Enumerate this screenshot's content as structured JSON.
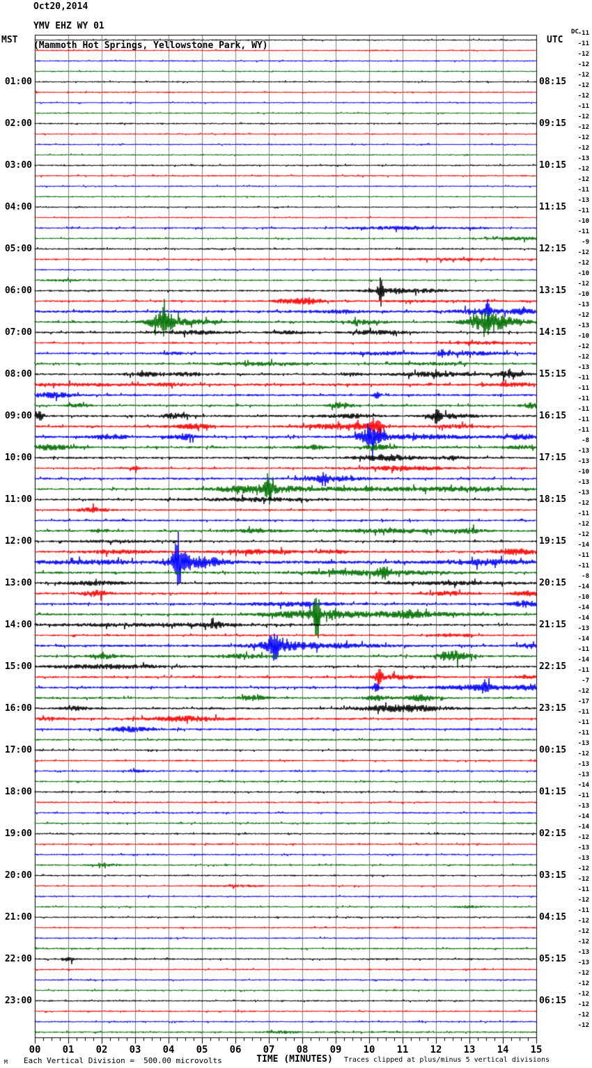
{
  "title": {
    "line1": "Oct20,2014",
    "line2": "YMV EHZ WY 01",
    "line3": "(Mammoth Hot Springs, Yellowstone Park, WY)"
  },
  "left_axis": {
    "header": "MST",
    "hours": [
      "01:00",
      "02:00",
      "03:00",
      "04:00",
      "05:00",
      "06:00",
      "07:00",
      "08:00",
      "09:00",
      "10:00",
      "11:00",
      "12:00",
      "13:00",
      "14:00",
      "15:00",
      "16:00",
      "17:00",
      "18:00",
      "19:00",
      "20:00",
      "21:00",
      "22:00",
      "23:00"
    ]
  },
  "right_axis": {
    "header": "UTC",
    "hours": [
      "08:15",
      "09:15",
      "10:15",
      "11:15",
      "12:15",
      "13:15",
      "14:15",
      "15:15",
      "16:15",
      "17:15",
      "18:15",
      "19:15",
      "20:15",
      "21:15",
      "22:15",
      "23:15",
      "00:15",
      "01:15",
      "02:15",
      "03:15",
      "04:15",
      "05:15",
      "06:15"
    ]
  },
  "dc_axis": {
    "header": "DC",
    "values": [
      -11,
      -11,
      -12,
      -12,
      -12,
      -12,
      -12,
      -11,
      -12,
      -12,
      -12,
      -12,
      -13,
      -12,
      -12,
      -11,
      -13,
      -11,
      -10,
      -11,
      -9,
      -12,
      -12,
      -10,
      -12,
      -10,
      -13,
      -12,
      -13,
      -10,
      -12,
      -12,
      -13,
      -11,
      -11,
      -11,
      -11,
      -11,
      -11,
      -8,
      -13,
      -13,
      -10,
      -13,
      -13,
      -12,
      -11,
      -12,
      -12,
      -14,
      -11,
      -11,
      -8,
      -14,
      -10,
      -14,
      -14,
      -13,
      -14,
      -11,
      -14,
      -11,
      -7,
      -12,
      -17,
      -11,
      -11,
      -11,
      -13,
      -12,
      -13,
      -13,
      -14,
      -11,
      -13,
      -14,
      -14,
      -12,
      -13,
      -13,
      -12,
      -12,
      -11,
      -12,
      -11,
      -12,
      -12,
      -12,
      -13,
      -13,
      -12,
      -12,
      -12,
      -12,
      -12,
      -12
    ]
  },
  "x_axis": {
    "labels": [
      "00",
      "01",
      "02",
      "03",
      "04",
      "05",
      "06",
      "07",
      "08",
      "09",
      "10",
      "11",
      "12",
      "13",
      "14",
      "15"
    ],
    "title": "TIME (MINUTES)"
  },
  "footer": {
    "left_note": "Each Vertical Division =  500.00 microvolts",
    "right_note": "Traces clipped at plus/minus 5 vertical divisions",
    "corner_mark": "M"
  },
  "colors": {
    "trace_cycle": [
      "#000000",
      "#ff0000",
      "#0000ff",
      "#006f00"
    ],
    "grid": "#808080",
    "border": "#000000"
  },
  "chart_data": {
    "type": "line",
    "subtype": "seismogram-helicorder",
    "station": "YMV EHZ WY 01",
    "location": "Mammoth Hot Springs, Yellowstone Park, WY",
    "date": "Oct20,2014",
    "timezone_left": "MST",
    "timezone_right": "UTC",
    "rows_total": 96,
    "minutes_per_row": 15,
    "x_range_minutes": [
      0,
      15
    ],
    "microvolts_per_division": 500,
    "clip_divisions": 5,
    "traces": [
      {
        "base": 0.9,
        "bursts": []
      },
      {
        "base": 0.9,
        "bursts": []
      },
      {
        "base": 0.9,
        "bursts": []
      },
      {
        "base": 0.9,
        "bursts": []
      },
      {
        "base": 0.9,
        "bursts": []
      },
      {
        "base": 0.9,
        "bursts": []
      },
      {
        "base": 0.9,
        "bursts": []
      },
      {
        "base": 0.9,
        "bursts": []
      },
      {
        "base": 1.0,
        "bursts": []
      },
      {
        "base": 0.9,
        "bursts": []
      },
      {
        "base": 0.9,
        "bursts": []
      },
      {
        "base": 0.9,
        "bursts": []
      },
      {
        "base": 1.0,
        "bursts": []
      },
      {
        "base": 1.0,
        "bursts": []
      },
      {
        "base": 0.9,
        "bursts": []
      },
      {
        "base": 0.9,
        "bursts": []
      },
      {
        "base": 0.9,
        "bursts": []
      },
      {
        "base": 0.9,
        "bursts": []
      },
      {
        "base": 1.1,
        "bursts": [
          [
            10.8,
            1.0,
            1.8
          ],
          [
            13.2,
            0.3,
            1.2
          ]
        ]
      },
      {
        "base": 1.0,
        "bursts": [
          [
            14.5,
            0.5,
            1.8
          ]
        ]
      },
      {
        "base": 1.1,
        "bursts": []
      },
      {
        "base": 1.1,
        "bursts": [
          [
            12.2,
            1.2,
            1.2
          ]
        ]
      },
      {
        "base": 0.9,
        "bursts": []
      },
      {
        "base": 1.1,
        "bursts": [
          [
            1.0,
            0.5,
            0.8
          ]
        ]
      },
      {
        "base": 1.2,
        "bursts": [
          [
            10.35,
            0.05,
            22
          ],
          [
            10.7,
            0.6,
            2.5
          ],
          [
            11.8,
            0.6,
            1.5
          ]
        ]
      },
      {
        "base": 1.3,
        "bursts": [
          [
            7.45,
            0.22,
            2.5
          ],
          [
            8.15,
            0.28,
            4.5
          ],
          [
            12,
            1,
            1
          ]
        ]
      },
      {
        "base": 1.8,
        "bursts": [
          [
            9,
            0.5,
            1.5
          ],
          [
            13.4,
            0.6,
            3
          ],
          [
            13.55,
            0.05,
            11
          ],
          [
            14.6,
            0.3,
            2.5
          ]
        ]
      },
      {
        "base": 1.5,
        "bursts": [
          [
            3.85,
            0.3,
            12
          ],
          [
            3.88,
            0.05,
            22
          ],
          [
            4.7,
            0.5,
            3
          ],
          [
            9.9,
            0.4,
            2.5
          ],
          [
            13.5,
            0.4,
            12
          ],
          [
            14.2,
            0.5,
            3.5
          ]
        ]
      },
      {
        "base": 1.3,
        "bursts": [
          [
            4.7,
            0.7,
            2.2
          ],
          [
            7.6,
            0.4,
            1.8
          ],
          [
            10.2,
            0.6,
            2.5
          ]
        ]
      },
      {
        "base": 1.2,
        "bursts": [
          [
            13.5,
            0.8,
            1.5
          ]
        ]
      },
      {
        "base": 1.4,
        "bursts": [
          [
            4.2,
            0.3,
            1.2
          ],
          [
            10.3,
            0.7,
            1.8
          ],
          [
            12.2,
            0.1,
            4
          ],
          [
            13,
            0.8,
            2
          ]
        ]
      },
      {
        "base": 1.3,
        "bursts": [
          [
            6.8,
            0.9,
            2.2
          ],
          [
            11.8,
            0.8,
            1.5
          ]
        ]
      },
      {
        "base": 1.4,
        "bursts": [
          [
            3.3,
            0.4,
            2.6
          ],
          [
            4.6,
            0.4,
            2
          ],
          [
            9.5,
            0.2,
            2.5
          ],
          [
            11.9,
            0.8,
            3
          ],
          [
            14.2,
            0.3,
            4
          ]
        ]
      },
      {
        "base": 1.7,
        "bursts": [
          [
            1.3,
            1.2,
            1.3
          ],
          [
            4,
            0.4,
            1.5
          ],
          [
            14.4,
            0.5,
            2
          ]
        ]
      },
      {
        "base": 1.5,
        "bursts": [
          [
            0.5,
            0.4,
            3.5
          ],
          [
            10.25,
            0.07,
            6
          ]
        ]
      },
      {
        "base": 1.4,
        "bursts": [
          [
            1.35,
            0.2,
            2.5
          ],
          [
            9.15,
            0.22,
            4
          ],
          [
            14.9,
            0.2,
            4
          ]
        ]
      },
      {
        "base": 1.5,
        "bursts": [
          [
            0.15,
            0.08,
            7
          ],
          [
            4.2,
            0.3,
            3
          ],
          [
            9.4,
            0.5,
            2.5
          ],
          [
            12,
            0.08,
            8
          ],
          [
            12.4,
            0.5,
            3
          ]
        ]
      },
      {
        "base": 1.5,
        "bursts": [
          [
            4.7,
            0.4,
            3
          ],
          [
            9.3,
            0.8,
            4
          ],
          [
            10.25,
            0.12,
            12
          ],
          [
            12.6,
            0.4,
            2
          ]
        ]
      },
      {
        "base": 1.6,
        "bursts": [
          [
            2.2,
            0.4,
            3
          ],
          [
            4.45,
            0.3,
            3.5
          ],
          [
            10.1,
            0.25,
            13
          ],
          [
            11.5,
            1.2,
            2.5
          ],
          [
            14.6,
            0.4,
            3
          ]
        ]
      },
      {
        "base": 1.5,
        "bursts": [
          [
            0.5,
            0.4,
            3.5
          ],
          [
            8.3,
            0.3,
            2.5
          ],
          [
            10.3,
            0.3,
            3
          ],
          [
            14.5,
            0.4,
            2
          ]
        ]
      },
      {
        "base": 1.4,
        "bursts": [
          [
            10.5,
            0.6,
            4
          ],
          [
            12.5,
            0.4,
            2
          ]
        ]
      },
      {
        "base": 1.3,
        "bursts": [
          [
            3.0,
            0.08,
            3
          ],
          [
            11,
            1,
            2.5
          ]
        ]
      },
      {
        "base": 1.4,
        "bursts": [
          [
            8.65,
            0.08,
            7
          ],
          [
            8.8,
            0.7,
            3.5
          ]
        ]
      },
      {
        "base": 1.5,
        "bursts": [
          [
            6.6,
            0.8,
            5
          ],
          [
            7.0,
            0.06,
            22
          ],
          [
            9.5,
            1.8,
            2
          ],
          [
            13,
            1.2,
            2
          ]
        ]
      },
      {
        "base": 1.4,
        "bursts": [
          [
            6.6,
            1.2,
            2.2
          ]
        ]
      },
      {
        "base": 1.3,
        "bursts": [
          [
            1.75,
            0.3,
            3
          ]
        ]
      },
      {
        "base": 1.3,
        "bursts": []
      },
      {
        "base": 1.4,
        "bursts": [
          [
            2,
            0.2,
            2
          ],
          [
            6.5,
            0.6,
            2
          ],
          [
            11,
            1.3,
            2.2
          ],
          [
            13,
            0.3,
            2.5
          ]
        ]
      },
      {
        "base": 1.3,
        "bursts": [
          [
            2.5,
            1,
            1.2
          ]
        ]
      },
      {
        "base": 1.5,
        "bursts": [
          [
            2.5,
            0.7,
            2.2
          ],
          [
            6.7,
            0.9,
            2.5
          ],
          [
            9,
            0.3,
            2
          ],
          [
            14.4,
            0.5,
            3.5
          ]
        ]
      },
      {
        "base": 2.2,
        "bursts": [
          [
            1.5,
            1,
            2
          ],
          [
            4.28,
            0.05,
            45
          ],
          [
            4.3,
            0.25,
            12
          ],
          [
            4.8,
            0.3,
            6
          ],
          [
            5.4,
            0.3,
            4
          ],
          [
            13.5,
            0.7,
            3
          ]
        ]
      },
      {
        "base": 1.6,
        "bursts": [
          [
            10.2,
            1.2,
            3.5
          ],
          [
            10.45,
            0.12,
            6
          ]
        ]
      },
      {
        "base": 1.4,
        "bursts": [
          [
            1.8,
            0.7,
            2.5
          ],
          [
            12.5,
            1.3,
            1.8
          ]
        ]
      },
      {
        "base": 1.5,
        "bursts": [
          [
            1.85,
            0.3,
            4
          ],
          [
            12.4,
            0.4,
            2.5
          ],
          [
            14.8,
            0.3,
            3
          ]
        ]
      },
      {
        "base": 1.5,
        "bursts": [
          [
            7.8,
            0.9,
            2.5
          ],
          [
            14.7,
            0.3,
            4
          ]
        ]
      },
      {
        "base": 1.5,
        "bursts": [
          [
            8.3,
            0.9,
            5
          ],
          [
            8.45,
            0.06,
            40
          ],
          [
            11,
            1.6,
            3
          ],
          [
            11.2,
            0.18,
            6
          ]
        ]
      },
      {
        "base": 1.4,
        "bursts": [
          [
            3.5,
            2.2,
            1.8
          ],
          [
            5.4,
            0.18,
            3.5
          ]
        ]
      },
      {
        "base": 1.3,
        "bursts": [
          [
            12.5,
            0.4,
            2
          ]
        ]
      },
      {
        "base": 1.6,
        "bursts": [
          [
            7.15,
            0.08,
            30
          ],
          [
            7.3,
            0.6,
            6
          ],
          [
            9,
            1,
            2.5
          ],
          [
            14.9,
            0.3,
            3
          ]
        ]
      },
      {
        "base": 1.5,
        "bursts": [
          [
            2.1,
            0.3,
            3
          ],
          [
            6.2,
            0.5,
            2.5
          ],
          [
            12.4,
            0.22,
            7
          ],
          [
            12.8,
            0.3,
            3
          ]
        ]
      },
      {
        "base": 1.4,
        "bursts": [
          [
            2.2,
            1.2,
            2.5
          ]
        ]
      },
      {
        "base": 1.4,
        "bursts": [
          [
            10.3,
            0.07,
            10
          ],
          [
            10.8,
            0.5,
            3
          ],
          [
            14.8,
            0.3,
            2.5
          ]
        ]
      },
      {
        "base": 1.5,
        "bursts": [
          [
            10.2,
            0.08,
            5
          ],
          [
            13.2,
            0.7,
            3.5
          ],
          [
            13.45,
            0.08,
            7
          ],
          [
            14.8,
            0.3,
            4
          ]
        ]
      },
      {
        "base": 1.4,
        "bursts": [
          [
            6.5,
            0.3,
            3
          ],
          [
            10.3,
            0.3,
            3
          ],
          [
            11.6,
            0.3,
            4
          ]
        ]
      },
      {
        "base": 1.4,
        "bursts": [
          [
            1.2,
            0.3,
            2.5
          ],
          [
            11,
            0.9,
            4.5
          ]
        ]
      },
      {
        "base": 1.4,
        "bursts": [
          [
            0.5,
            0.3,
            2
          ],
          [
            4.5,
            0.8,
            3.5
          ]
        ]
      },
      {
        "base": 1.4,
        "bursts": [
          [
            2.85,
            0.4,
            3.5
          ]
        ]
      },
      {
        "base": 1.3,
        "bursts": []
      },
      {
        "base": 1.1,
        "bursts": []
      },
      {
        "base": 1.1,
        "bursts": []
      },
      {
        "base": 1.1,
        "bursts": [
          [
            3.2,
            0.3,
            1.4
          ]
        ]
      },
      {
        "base": 1.1,
        "bursts": []
      },
      {
        "base": 1.1,
        "bursts": []
      },
      {
        "base": 1.1,
        "bursts": []
      },
      {
        "base": 1.1,
        "bursts": []
      },
      {
        "base": 1.1,
        "bursts": []
      },
      {
        "base": 1.1,
        "bursts": []
      },
      {
        "base": 1.1,
        "bursts": []
      },
      {
        "base": 1.0,
        "bursts": []
      },
      {
        "base": 1.1,
        "bursts": [
          [
            2.2,
            0.3,
            1.6
          ]
        ]
      },
      {
        "base": 1.0,
        "bursts": []
      },
      {
        "base": 1.0,
        "bursts": [
          [
            6,
            0.5,
            1.2
          ]
        ]
      },
      {
        "base": 1.0,
        "bursts": []
      },
      {
        "base": 1.0,
        "bursts": [
          [
            13,
            0.3,
            1.4
          ]
        ]
      },
      {
        "base": 1.0,
        "bursts": []
      },
      {
        "base": 1.0,
        "bursts": []
      },
      {
        "base": 1.0,
        "bursts": []
      },
      {
        "base": 1.1,
        "bursts": []
      },
      {
        "base": 1.1,
        "bursts": [
          [
            1.0,
            0.1,
            5
          ]
        ]
      },
      {
        "base": 1.0,
        "bursts": []
      },
      {
        "base": 1.0,
        "bursts": []
      },
      {
        "base": 1.0,
        "bursts": []
      },
      {
        "base": 1.0,
        "bursts": []
      },
      {
        "base": 1.0,
        "bursts": []
      },
      {
        "base": 1.0,
        "bursts": []
      },
      {
        "base": 1.1,
        "bursts": [
          [
            7.5,
            0.3,
            1.4
          ]
        ]
      }
    ]
  }
}
